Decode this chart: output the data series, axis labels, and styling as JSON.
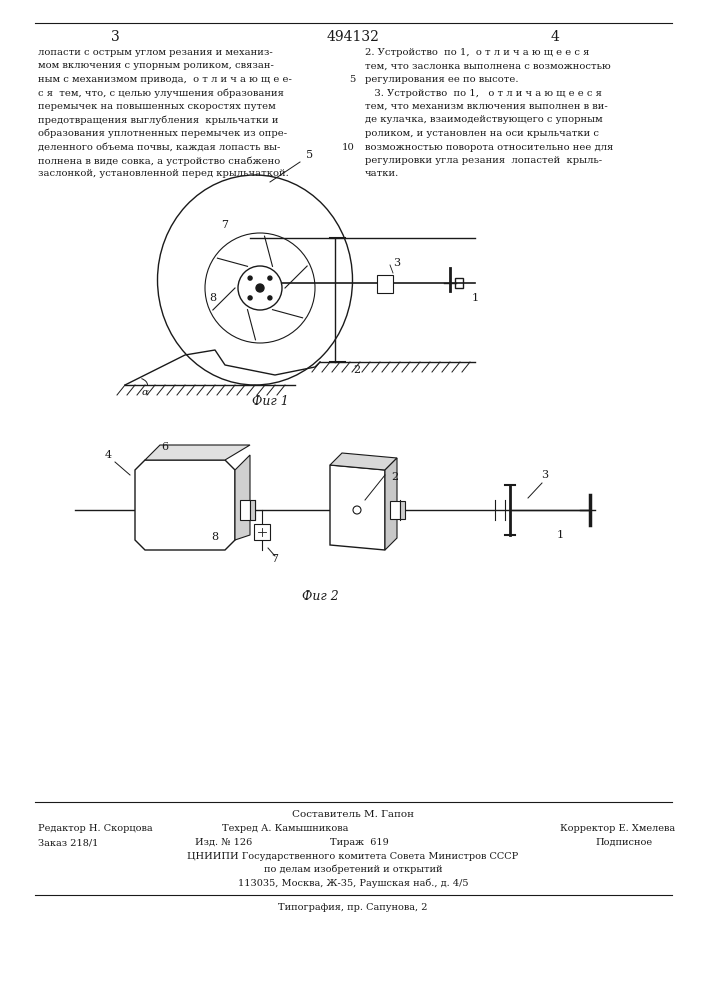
{
  "patent_number": "494132",
  "background_color": "#ffffff",
  "text_color": "#1a1a1a",
  "fig1_caption": "Фиг 1",
  "fig2_caption": "Фиг 2",
  "footer_composer": "Составитель М. Гапон",
  "footer_editor": "Редактор Н. Скорцова",
  "footer_techred": "Техред А. Камышникова",
  "footer_corrector": "Корректор Е. Хмелева",
  "footer_order": "Заказ 218/1",
  "footer_izd": "Изд. № 126",
  "footer_tirazh": "Тираж  619",
  "footer_podpisnoe": "Подписное",
  "footer_tsniip": "ЦНИИПИ Государственного комитета Совета Министров СССР",
  "footer_po_delam": "по делам изобретений и открытий",
  "footer_address": "113035, Москва, Ж-35, Раушская наб., д. 4/5",
  "footer_tipography": "Типография, пр. Сапунова, 2"
}
